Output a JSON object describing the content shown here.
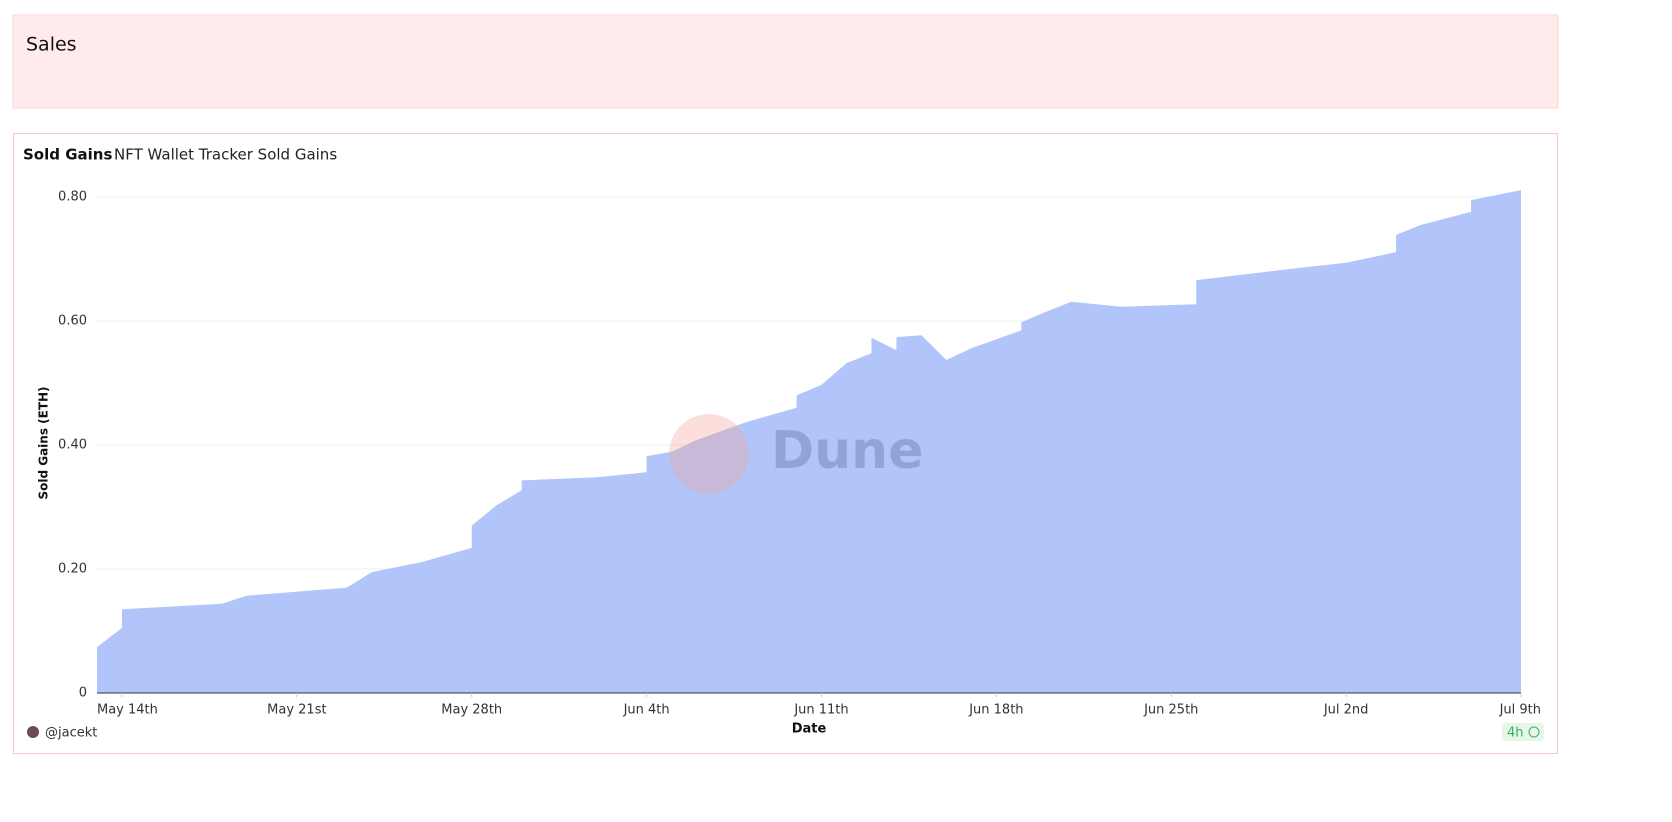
{
  "header": {
    "title": "Sales"
  },
  "chart_data": {
    "type": "area",
    "title": "Sold Gains",
    "subtitle": "NFT Wallet Tracker Sold Gains",
    "x_label": "Date",
    "y_label": "Sold Gains (ETH)",
    "watermark": "Dune",
    "author": "@jacekt",
    "freshness": "4h",
    "color": "#b1c5fb",
    "grid": true,
    "x": [
      "05-13",
      "05-14",
      "05-14",
      "05-18",
      "05-19",
      "05-23",
      "05-24",
      "05-26",
      "05-28",
      "05-28",
      "05-28",
      "05-29",
      "05-30",
      "05-30",
      "06-02",
      "06-04",
      "06-04",
      "06-05",
      "06-06",
      "06-08",
      "06-10",
      "06-10",
      "06-11",
      "06-12",
      "06-13",
      "06-13",
      "06-14",
      "06-14",
      "06-15",
      "06-16",
      "06-17",
      "06-19",
      "06-19",
      "06-20",
      "06-21",
      "06-23",
      "06-26",
      "06-26",
      "06-30",
      "07-02",
      "07-04",
      "07-04",
      "07-05",
      "07-07",
      "07-07",
      "07-09"
    ],
    "values": [
      0.074,
      0.105,
      0.135,
      0.144,
      0.157,
      0.17,
      0.195,
      0.211,
      0.234,
      0.247,
      0.27,
      0.303,
      0.327,
      0.343,
      0.348,
      0.356,
      0.382,
      0.389,
      0.408,
      0.437,
      0.46,
      0.48,
      0.497,
      0.532,
      0.548,
      0.573,
      0.553,
      0.574,
      0.577,
      0.537,
      0.556,
      0.585,
      0.598,
      0.615,
      0.631,
      0.623,
      0.627,
      0.666,
      0.685,
      0.694,
      0.711,
      0.739,
      0.755,
      0.776,
      0.795,
      0.811
    ],
    "xlim": [
      "05-13",
      "07-09"
    ],
    "xticks": [
      {
        "value": "05-14",
        "label": "May 14th"
      },
      {
        "value": "05-21",
        "label": "May 21st"
      },
      {
        "value": "05-28",
        "label": "May 28th"
      },
      {
        "value": "06-04",
        "label": "Jun 4th"
      },
      {
        "value": "06-11",
        "label": "Jun 11th"
      },
      {
        "value": "06-18",
        "label": "Jun 18th"
      },
      {
        "value": "06-25",
        "label": "Jun 25th"
      },
      {
        "value": "07-02",
        "label": "Jul 2nd"
      },
      {
        "value": "07-09",
        "label": "Jul 9th"
      }
    ],
    "ylim": [
      0,
      0.8
    ],
    "yticks": [
      0,
      {
        "value": 0.2,
        "label": "0.20"
      },
      {
        "value": 0.4,
        "label": "0.40"
      },
      {
        "value": 0.6,
        "label": "0.60"
      },
      {
        "value": 0.8,
        "label": "0.80"
      }
    ]
  }
}
